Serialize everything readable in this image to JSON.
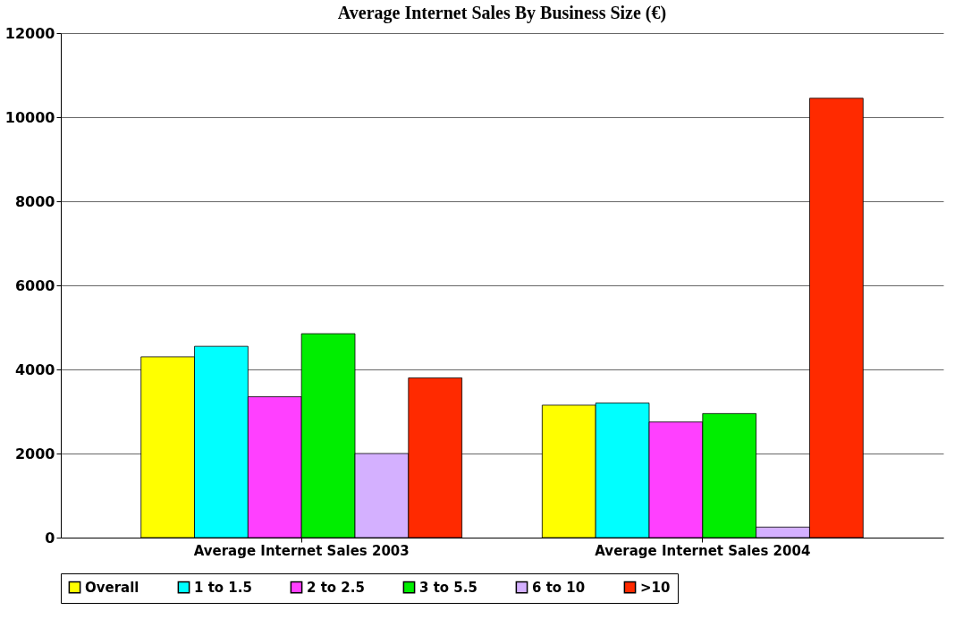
{
  "chart_data": {
    "type": "bar",
    "title": "Average Internet Sales By Business Size (€)",
    "categories": [
      "Average Internet Sales 2003",
      "Average Internet Sales 2004"
    ],
    "series": [
      {
        "name": "Overall",
        "color": "#ffff00",
        "values": [
          4300,
          3150
        ]
      },
      {
        "name": "1 to 1.5",
        "color": "#00ffff",
        "values": [
          4550,
          3200
        ]
      },
      {
        "name": "2 to 2.5",
        "color": "#ff40ff",
        "values": [
          3350,
          2750
        ]
      },
      {
        "name": "3 to 5.5",
        "color": "#00ee00",
        "values": [
          4850,
          2950
        ]
      },
      {
        "name": "6 to 10",
        "color": "#d4b0ff",
        "values": [
          2000,
          250
        ]
      },
      {
        "name": ">10",
        "color": "#ff2a00",
        "values": [
          3800,
          10450
        ]
      }
    ],
    "ylim": [
      0,
      12000
    ],
    "yticks": [
      0,
      2000,
      4000,
      6000,
      8000,
      10000,
      12000
    ],
    "grid": "y",
    "legend": "bottom"
  }
}
